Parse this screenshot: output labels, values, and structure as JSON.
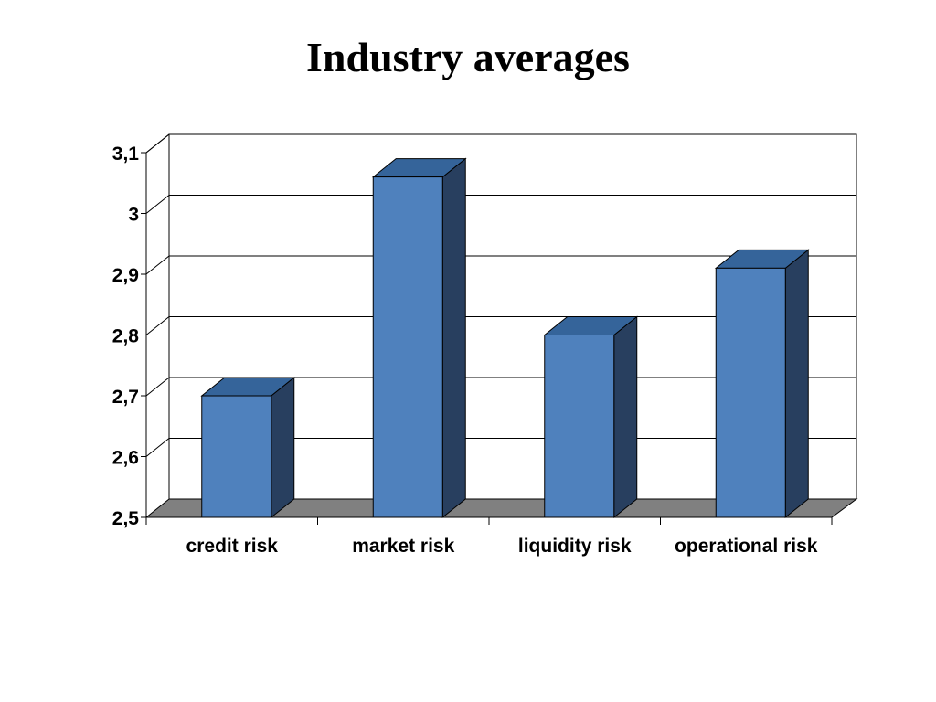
{
  "chart_data": {
    "type": "bar",
    "title": "Industry averages",
    "xlabel": "",
    "ylabel": "",
    "categories": [
      "credit risk",
      "market risk",
      "liquidity risk",
      "operational risk"
    ],
    "values": [
      2.7,
      3.06,
      2.8,
      2.91
    ],
    "ylim": [
      2.5,
      3.1
    ],
    "y_ticks": [
      2.5,
      2.6,
      2.7,
      2.8,
      2.9,
      3.0,
      3.1
    ],
    "y_tick_labels": [
      "2,5",
      "2,6",
      "2,7",
      "2,8",
      "2,9",
      "3",
      "3,1"
    ],
    "grid": true,
    "legend": "none",
    "style": "3d-column"
  },
  "colors": {
    "bar_front": "#4f81bd",
    "bar_side": "#283f5f",
    "bar_top": "#35649a",
    "floor": "#808080",
    "grid": "#000000",
    "background": "#ffffff"
  }
}
